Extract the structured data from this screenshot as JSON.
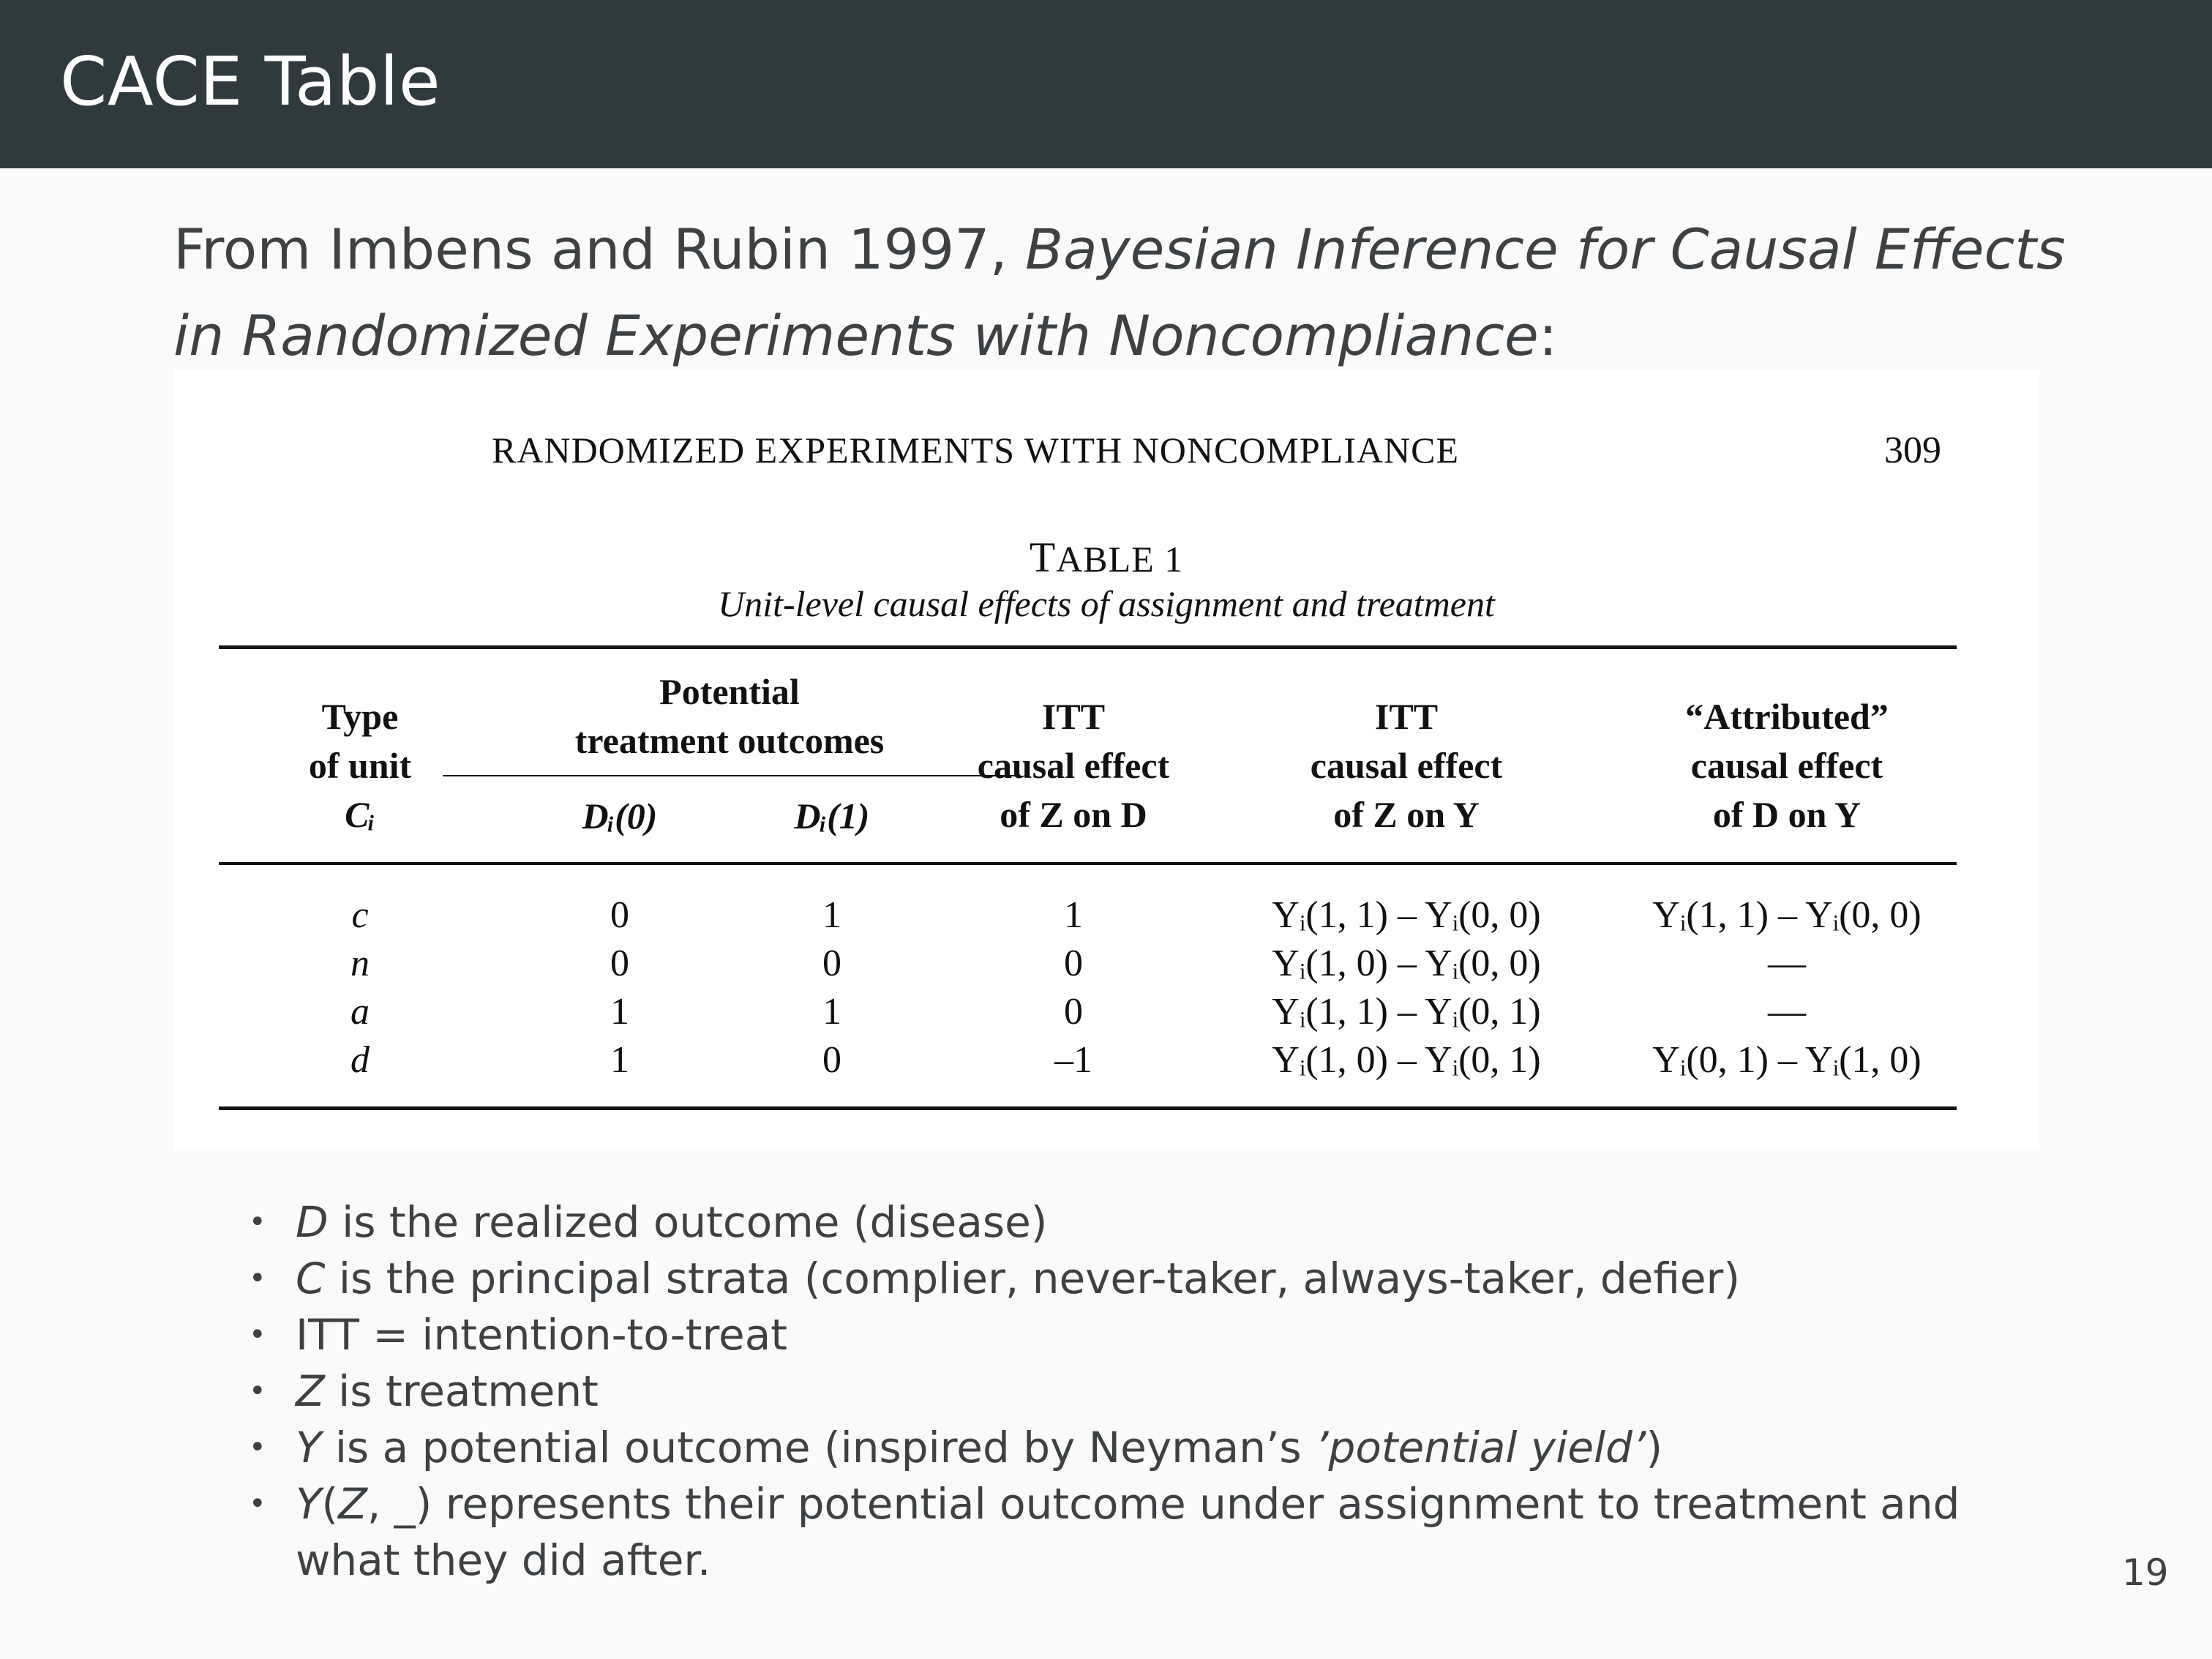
{
  "header": {
    "title": "CACE Table"
  },
  "intro": {
    "prefix": "From Imbens and Rubin 1997, ",
    "paper_title": "Bayesian Inference for Causal Effects in Randomized Experiments with Noncompliance",
    "suffix": ":"
  },
  "scan": {
    "running_head": "RANDOMIZED EXPERIMENTS WITH NONCOMPLIANCE",
    "page_number": "309",
    "table_label_initial": "T",
    "table_label_rest": "ABLE 1",
    "caption": "Unit-level causal effects of assignment and treatment",
    "headers": {
      "type_1": "Type",
      "type_2": "of unit",
      "type_3": "Cᵢ",
      "potential_1": "Potential",
      "potential_2": "treatment outcomes",
      "d0": "Dᵢ(0)",
      "d1": "Dᵢ(1)",
      "itt_zd_1": "ITT",
      "itt_zd_2": "causal effect",
      "itt_zd_3": "of Z on D",
      "itt_zy_1": "ITT",
      "itt_zy_2": "causal effect",
      "itt_zy_3": "of Z on Y",
      "attr_1": "“Attributed”",
      "attr_2": "causal effect",
      "attr_3": "of D on Y"
    },
    "rows": [
      {
        "type": "c",
        "d0": "0",
        "d1": "1",
        "zd": "1",
        "zy": "Yᵢ(1, 1) – Yᵢ(0, 0)",
        "dy": "Yᵢ(1, 1) – Yᵢ(0, 0)"
      },
      {
        "type": "n",
        "d0": "0",
        "d1": "0",
        "zd": "0",
        "zy": "Yᵢ(1, 0) – Yᵢ(0, 0)",
        "dy": "—"
      },
      {
        "type": "a",
        "d0": "1",
        "d1": "1",
        "zd": "0",
        "zy": "Yᵢ(1, 1) – Yᵢ(0, 1)",
        "dy": "—"
      },
      {
        "type": "d",
        "d0": "1",
        "d1": "0",
        "zd": "–1",
        "zy": "Yᵢ(1, 0) – Yᵢ(0, 1)",
        "dy": "Yᵢ(0, 1) – Yᵢ(1, 0)"
      }
    ]
  },
  "bullets": [
    {
      "lead": "D",
      "text": " is the realized outcome (disease)"
    },
    {
      "lead": "C",
      "text": " is the principal strata (complier, never-taker, always-taker, defier)"
    },
    {
      "lead": "",
      "text": "ITT = intention-to-treat"
    },
    {
      "lead": "Z",
      "text": " is treatment"
    },
    {
      "lead": "Y",
      "text": " is a potential outcome (inspired by Neyman’s ",
      "tail_italic": "’potential yield’",
      "tail": ")"
    },
    {
      "lead": "Y",
      "text": "(",
      "mid_italic": "Z",
      "text2": ", _) represents their potential outcome under assignment to treatment and what they did after."
    }
  ],
  "slide_number": "19"
}
